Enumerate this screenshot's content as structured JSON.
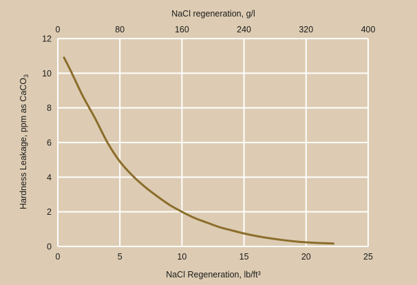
{
  "colors": {
    "background": "#ddccb3",
    "grid": "#ffffff",
    "curve": "#8b6d2b"
  },
  "chart_data": {
    "type": "line",
    "title": "",
    "xlabel": "NaCl Regeneration, lb/ft³",
    "x2label": "NaCl regeneration, g/l",
    "ylabel_main": "Hardness Leakage, ppm as CaCO",
    "ylabel_sub": "3",
    "xlim": [
      0,
      25
    ],
    "x2lim": [
      0,
      400
    ],
    "ylim": [
      0,
      12
    ],
    "x_ticks": [
      "0",
      "5",
      "10",
      "15",
      "20",
      "25"
    ],
    "x2_ticks": [
      "0",
      "80",
      "160",
      "240",
      "320",
      "400"
    ],
    "y_ticks": [
      "0",
      "2",
      "4",
      "6",
      "8",
      "10",
      "12"
    ],
    "grid": true,
    "series": [
      {
        "x": [
          0.5,
          1,
          2,
          3,
          4,
          5,
          6,
          7,
          8,
          9,
          10,
          11,
          12,
          13,
          14,
          15,
          16,
          17,
          18,
          19,
          20,
          21,
          22.2
        ],
        "y": [
          10.9,
          10.2,
          8.7,
          7.4,
          6.0,
          4.9,
          4.1,
          3.45,
          2.9,
          2.4,
          2.0,
          1.65,
          1.38,
          1.12,
          0.93,
          0.75,
          0.6,
          0.48,
          0.38,
          0.3,
          0.24,
          0.2,
          0.17
        ]
      }
    ]
  }
}
